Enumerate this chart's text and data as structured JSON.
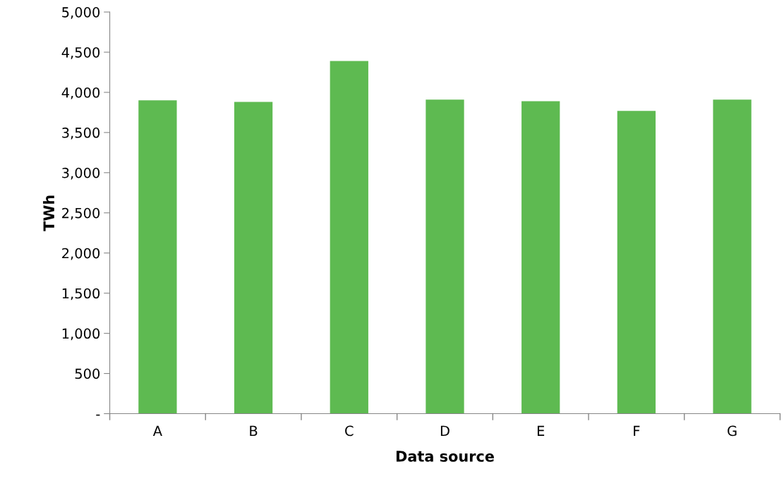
{
  "chart_data": {
    "type": "bar",
    "xlabel": "Data source",
    "ylabel": "TWh",
    "categories": [
      "A",
      "B",
      "C",
      "D",
      "E",
      "F",
      "G"
    ],
    "values": [
      3900,
      3880,
      4390,
      3910,
      3890,
      3770,
      3910
    ],
    "color": "#5eba51",
    "ylim": [
      0,
      5000
    ],
    "yticks": [
      {
        "value": 0,
        "label": "-"
      },
      {
        "value": 500,
        "label": "500"
      },
      {
        "value": 1000,
        "label": "1,000"
      },
      {
        "value": 1500,
        "label": "1,500"
      },
      {
        "value": 2000,
        "label": "2,000"
      },
      {
        "value": 2500,
        "label": "2,500"
      },
      {
        "value": 3000,
        "label": "3,000"
      },
      {
        "value": 3500,
        "label": "3,500"
      },
      {
        "value": 4000,
        "label": "4,000"
      },
      {
        "value": 4500,
        "label": "4,500"
      },
      {
        "value": 5000,
        "label": "5,000"
      }
    ],
    "grid": false
  }
}
